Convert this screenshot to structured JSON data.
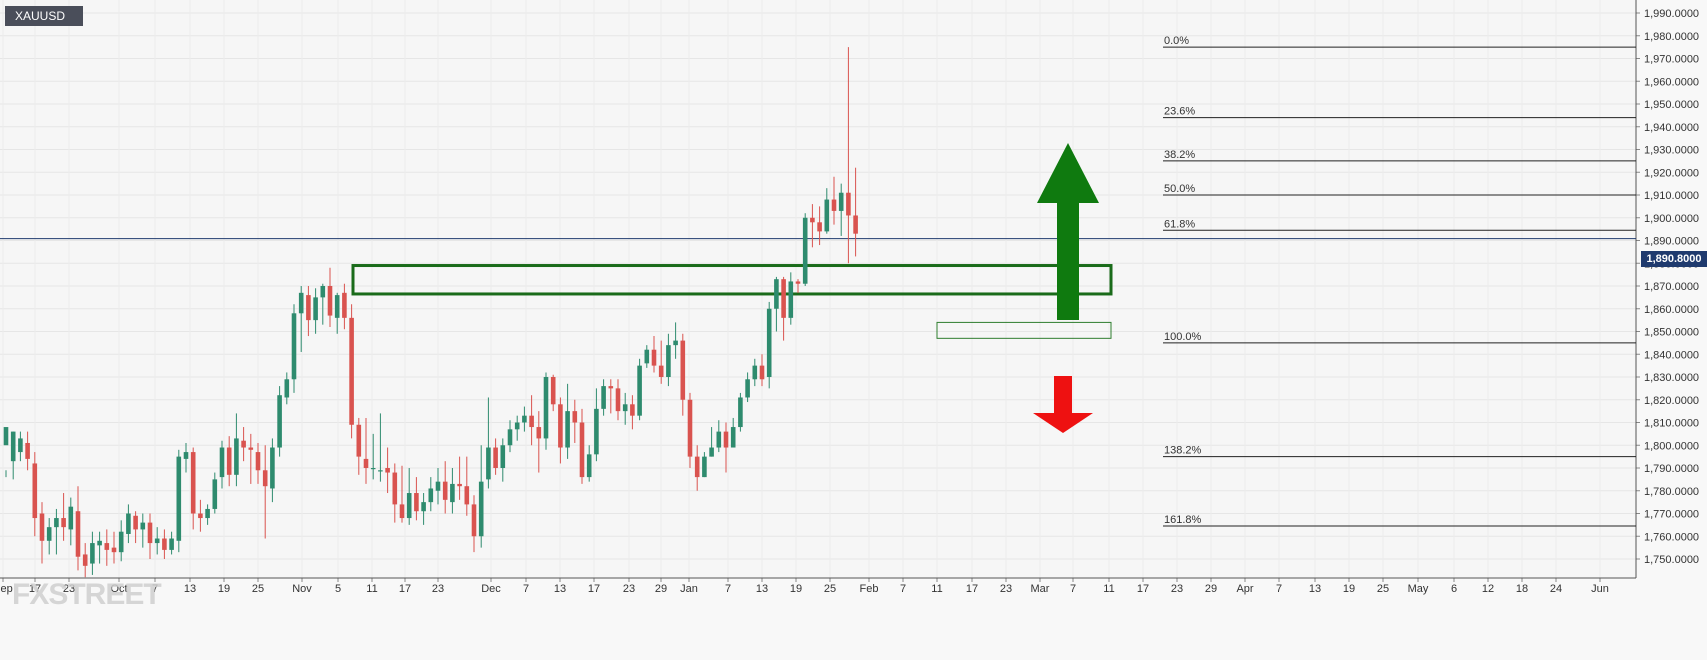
{
  "symbol": "XAUUSD",
  "watermark": "FXSTREET",
  "current_price_label": "1,890.8000",
  "colors": {
    "up": "#2e8b6e",
    "down": "#d9534f",
    "zone": "#1a6b1a",
    "arrow_up": "#0f7a0f",
    "arrow_down": "#ee1111",
    "price_line": "#1f3a6e"
  },
  "chart_data": {
    "type": "candlestick",
    "ylim": [
      1740,
      1995
    ],
    "y_ticks": [
      "1,750.0000",
      "1,760.0000",
      "1,770.0000",
      "1,780.0000",
      "1,790.0000",
      "1,800.0000",
      "1,810.0000",
      "1,820.0000",
      "1,830.0000",
      "1,840.0000",
      "1,850.0000",
      "1,860.0000",
      "1,870.0000",
      "1,880.0000",
      "1,890.0000",
      "1,900.0000",
      "1,910.0000",
      "1,920.0000",
      "1,930.0000",
      "1,940.0000",
      "1,950.0000",
      "1,960.0000",
      "1,970.0000",
      "1,980.0000",
      "1,990.0000"
    ],
    "x_ticks": [
      "Sep",
      "17",
      "23",
      "Oct",
      "7",
      "13",
      "19",
      "25",
      "Nov",
      "5",
      "11",
      "17",
      "23",
      "Dec",
      "7",
      "13",
      "17",
      "23",
      "29",
      "Jan",
      "7",
      "13",
      "19",
      "25",
      "Feb",
      "7",
      "11",
      "17",
      "23",
      "Mar",
      "7",
      "11",
      "17",
      "23",
      "29",
      "Apr",
      "7",
      "13",
      "19",
      "25",
      "May",
      "6",
      "12",
      "18",
      "24",
      "Jun"
    ],
    "current_price": 1890.8,
    "fibonacci": [
      {
        "label": "0.0%",
        "price": 1975
      },
      {
        "label": "23.6%",
        "price": 1944
      },
      {
        "label": "38.2%",
        "price": 1925
      },
      {
        "label": "50.0%",
        "price": 1910
      },
      {
        "label": "61.8%",
        "price": 1894.5
      },
      {
        "label": "100.0%",
        "price": 1845
      },
      {
        "label": "138.2%",
        "price": 1795
      },
      {
        "label": "161.8%",
        "price": 1764.5
      }
    ],
    "zones": [
      {
        "from": 1866.5,
        "to": 1879
      },
      {
        "from": 1847,
        "to": 1854
      }
    ],
    "candles": [
      [
        1800,
        1808,
        1789,
        1786
      ],
      [
        1793,
        1806,
        1806,
        1785
      ],
      [
        1797,
        1803,
        1806,
        1793
      ],
      [
        1801,
        1794,
        1806,
        1789
      ],
      [
        1792,
        1768,
        1797,
        1760
      ],
      [
        1770,
        1758,
        1775,
        1748
      ],
      [
        1758,
        1764,
        1768,
        1752
      ],
      [
        1764,
        1768,
        1772,
        1752
      ],
      [
        1768,
        1764,
        1779,
        1758
      ],
      [
        1763,
        1773,
        1777,
        1756
      ],
      [
        1771,
        1751,
        1782,
        1745
      ],
      [
        1752,
        1747,
        1757,
        1742
      ],
      [
        1748,
        1757,
        1762,
        1743
      ],
      [
        1756,
        1758,
        1762,
        1748
      ],
      [
        1757,
        1754,
        1763,
        1747
      ],
      [
        1755,
        1753,
        1762,
        1748
      ],
      [
        1753,
        1762,
        1767,
        1749
      ],
      [
        1761,
        1770,
        1774,
        1757
      ],
      [
        1769,
        1763,
        1771,
        1757
      ],
      [
        1763,
        1766,
        1770,
        1755
      ],
      [
        1766,
        1757,
        1770,
        1750
      ],
      [
        1757,
        1759,
        1764,
        1752
      ],
      [
        1759,
        1754,
        1763,
        1750
      ],
      [
        1754,
        1759,
        1762,
        1752
      ],
      [
        1758,
        1795,
        1798,
        1753
      ],
      [
        1794,
        1797,
        1801,
        1788
      ],
      [
        1797,
        1770,
        1799,
        1763
      ],
      [
        1770,
        1768,
        1776,
        1762
      ],
      [
        1768,
        1772,
        1774,
        1765
      ],
      [
        1772,
        1785,
        1788,
        1770
      ],
      [
        1786,
        1799,
        1802,
        1781
      ],
      [
        1799,
        1787,
        1804,
        1782
      ],
      [
        1787,
        1803,
        1814,
        1782
      ],
      [
        1802,
        1799,
        1808,
        1793
      ],
      [
        1799,
        1798,
        1805,
        1783
      ],
      [
        1797,
        1789,
        1801,
        1783
      ],
      [
        1789,
        1782,
        1800,
        1759
      ],
      [
        1781,
        1799,
        1803,
        1775
      ],
      [
        1799,
        1822,
        1826,
        1795
      ],
      [
        1821,
        1829,
        1832,
        1818
      ],
      [
        1829,
        1858,
        1862,
        1823
      ],
      [
        1858,
        1867,
        1870,
        1841
      ],
      [
        1866,
        1855,
        1870,
        1848
      ],
      [
        1855,
        1865,
        1869,
        1849
      ],
      [
        1865,
        1870,
        1871,
        1853
      ],
      [
        1870,
        1857,
        1878,
        1852
      ],
      [
        1856,
        1866,
        1867,
        1849
      ],
      [
        1867,
        1856,
        1871,
        1851
      ],
      [
        1856,
        1809,
        1862,
        1803
      ],
      [
        1809,
        1795,
        1812,
        1787
      ],
      [
        1794,
        1790,
        1812,
        1783
      ],
      [
        1790,
        1790,
        1805,
        1785
      ],
      [
        1789,
        1789,
        1814,
        1784
      ],
      [
        1790,
        1788,
        1799,
        1779
      ],
      [
        1788,
        1774,
        1792,
        1766
      ],
      [
        1774,
        1768,
        1791,
        1766
      ],
      [
        1768,
        1779,
        1790,
        1765
      ],
      [
        1779,
        1771,
        1786,
        1767
      ],
      [
        1771,
        1775,
        1779,
        1765
      ],
      [
        1775,
        1781,
        1786,
        1771
      ],
      [
        1780,
        1784,
        1790,
        1774
      ],
      [
        1784,
        1776,
        1793,
        1770
      ],
      [
        1775,
        1783,
        1790,
        1770
      ],
      [
        1783,
        1782,
        1795,
        1776
      ],
      [
        1782,
        1774,
        1795,
        1769
      ],
      [
        1774,
        1760,
        1778,
        1753
      ],
      [
        1760,
        1784,
        1800,
        1755
      ],
      [
        1785,
        1799,
        1821,
        1781
      ],
      [
        1799,
        1790,
        1803,
        1787
      ],
      [
        1790,
        1800,
        1803,
        1784
      ],
      [
        1800,
        1807,
        1811,
        1797
      ],
      [
        1807,
        1810,
        1813,
        1802
      ],
      [
        1810,
        1813,
        1817,
        1806
      ],
      [
        1813,
        1808,
        1822,
        1800
      ],
      [
        1808,
        1803,
        1815,
        1788
      ],
      [
        1803,
        1830,
        1832,
        1798
      ],
      [
        1830,
        1818,
        1831,
        1815
      ],
      [
        1818,
        1799,
        1821,
        1792
      ],
      [
        1799,
        1815,
        1827,
        1794
      ],
      [
        1815,
        1810,
        1820,
        1801
      ],
      [
        1810,
        1786,
        1816,
        1783
      ],
      [
        1786,
        1796,
        1800,
        1784
      ],
      [
        1796,
        1816,
        1825,
        1793
      ],
      [
        1816,
        1826,
        1829,
        1813
      ],
      [
        1826,
        1825,
        1829,
        1814
      ],
      [
        1825,
        1815,
        1829,
        1811
      ],
      [
        1815,
        1818,
        1823,
        1809
      ],
      [
        1818,
        1813,
        1822,
        1807
      ],
      [
        1813,
        1835,
        1838,
        1811
      ],
      [
        1836,
        1842,
        1844,
        1834
      ],
      [
        1842,
        1835,
        1848,
        1832
      ],
      [
        1835,
        1830,
        1846,
        1827
      ],
      [
        1830,
        1844,
        1849,
        1826
      ],
      [
        1844,
        1846,
        1854,
        1838
      ],
      [
        1846,
        1820,
        1849,
        1813
      ],
      [
        1820,
        1795,
        1823,
        1790
      ],
      [
        1795,
        1786,
        1800,
        1780
      ],
      [
        1786,
        1795,
        1797,
        1786
      ],
      [
        1795,
        1799,
        1808,
        1795
      ],
      [
        1799,
        1806,
        1811,
        1797
      ],
      [
        1806,
        1799,
        1810,
        1788
      ],
      [
        1799,
        1808,
        1812,
        1800
      ],
      [
        1808,
        1821,
        1823,
        1806
      ],
      [
        1821,
        1829,
        1832,
        1819
      ],
      [
        1829,
        1835,
        1838,
        1826
      ],
      [
        1835,
        1829,
        1840,
        1826
      ],
      [
        1830,
        1860,
        1863,
        1825
      ],
      [
        1860,
        1873,
        1874,
        1850
      ],
      [
        1873,
        1856,
        1874,
        1846
      ],
      [
        1856,
        1872,
        1876,
        1853
      ],
      [
        1872,
        1871,
        1873,
        1867
      ],
      [
        1871,
        1900,
        1902,
        1870
      ],
      [
        1900,
        1898,
        1906,
        1887
      ],
      [
        1898,
        1894,
        1905,
        1888
      ],
      [
        1894,
        1908,
        1913,
        1893
      ],
      [
        1908,
        1903,
        1918,
        1897
      ],
      [
        1903,
        1911,
        1915,
        1892
      ],
      [
        1911,
        1901,
        1975,
        1880
      ],
      [
        1901,
        1893,
        1922,
        1883
      ]
    ]
  }
}
